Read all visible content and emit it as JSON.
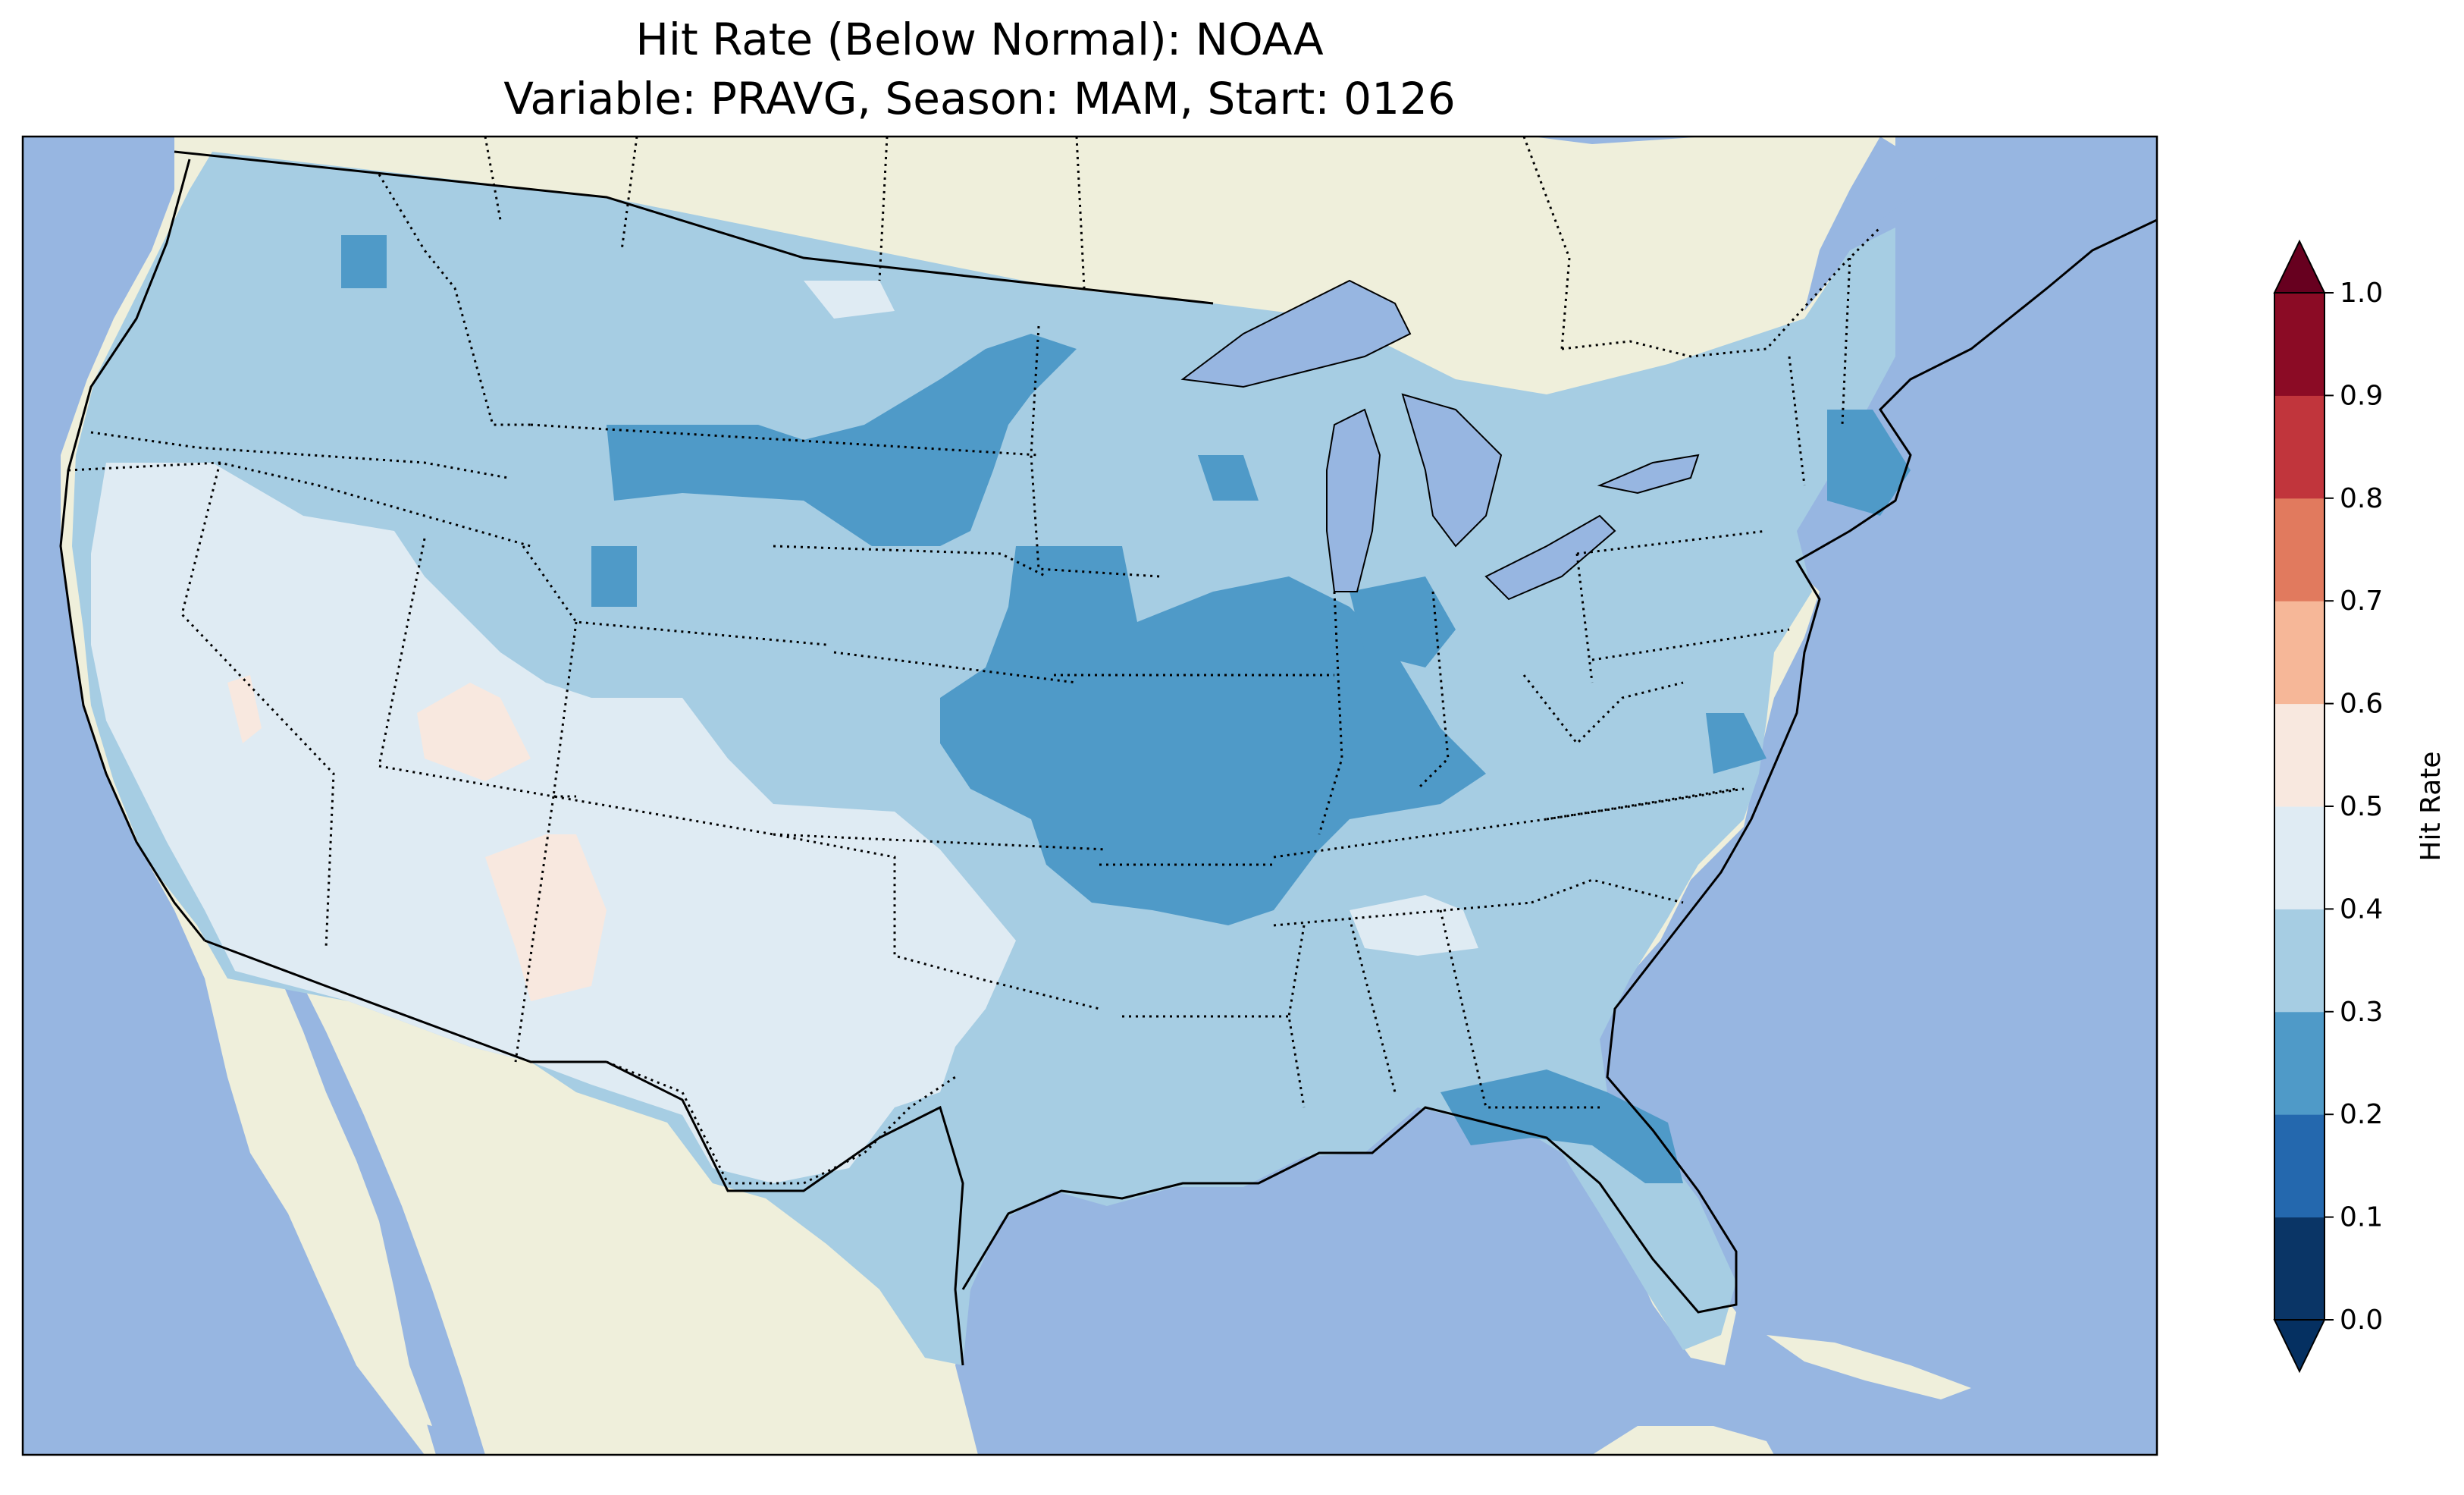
{
  "title": {
    "line1": "Hit Rate (Below Normal): NOAA",
    "line2": "Variable: PRAVG, Season: MAM, Start: 0126"
  },
  "colors": {
    "ocean": "#97b6e1",
    "land": "#efefdb",
    "lakes": "#97b6e1"
  },
  "colorbar": {
    "label": "Hit Rate",
    "ticks": [
      "0.0",
      "0.1",
      "0.2",
      "0.3",
      "0.4",
      "0.5",
      "0.6",
      "0.7",
      "0.8",
      "0.9",
      "1.0"
    ],
    "colors": [
      "#053061",
      "#2166ac",
      "#4393c3",
      "#92c5de",
      "#d1e5f0",
      "#f7f7f7",
      "#fddbc7",
      "#f4a582",
      "#d6604d",
      "#b2182b",
      "#67001f"
    ],
    "band_colors": [
      "#0a3566",
      "#2468ae",
      "#4f9ac8",
      "#a6cde3",
      "#dfebf3",
      "#f8e8df",
      "#f6b798",
      "#e17a5e",
      "#c1353c",
      "#8b0b25"
    ],
    "under_color": "#053061",
    "over_color": "#67001f"
  },
  "map_data": {
    "region": "Contiguous United States",
    "metric": "Hit Rate (Below Normal)",
    "dominant_range": "0.3-0.4"
  }
}
